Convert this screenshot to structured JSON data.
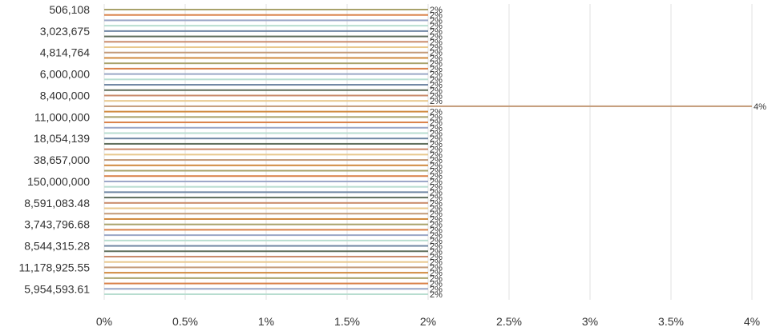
{
  "chart_data": {
    "type": "bar",
    "orientation": "horizontal",
    "title": "",
    "xlabel": "",
    "ylabel": "",
    "xlim": [
      0,
      4
    ],
    "x_ticks": [
      "0%",
      "0.5%",
      "1%",
      "1.5%",
      "2%",
      "2.5%",
      "3%",
      "3.5%",
      "4%"
    ],
    "x_tick_values": [
      0,
      0.5,
      1,
      1.5,
      2,
      2.5,
      3,
      3.5,
      4
    ],
    "grid": "vertical",
    "legend": "none",
    "category_tick_labels": [
      "506,108",
      "3,023,675",
      "4,814,764",
      "6,000,000",
      "8,400,000",
      "11,000,000",
      "18,054,139",
      "38,657,000",
      "150,000,000",
      "8,591,083.48",
      "3,743,796.68",
      "8,544,315.28",
      "11,178,925.55",
      "5,954,593.61"
    ],
    "bar_count": 54,
    "values": [
      2,
      2,
      2,
      2,
      2,
      2,
      2,
      2,
      2,
      2,
      2,
      2,
      2,
      2,
      2,
      2,
      2,
      2,
      4,
      2,
      2,
      2,
      2,
      2,
      2,
      2,
      2,
      2,
      2,
      2,
      2,
      2,
      2,
      2,
      2,
      2,
      2,
      2,
      2,
      2,
      2,
      2,
      2,
      2,
      2,
      2,
      2,
      2,
      2,
      2,
      2,
      2,
      2,
      2
    ],
    "labels": [
      "2%",
      "2%",
      "2%",
      "2%",
      "2%",
      "2%",
      "2%",
      "2%",
      "2%",
      "2%",
      "2%",
      "2%",
      "2%",
      "2%",
      "2%",
      "2%",
      "2%",
      "2%",
      "4%",
      "2%",
      "2%",
      "2%",
      "2%",
      "2%",
      "2%",
      "2%",
      "2%",
      "2%",
      "2%",
      "2%",
      "2%",
      "2%",
      "2%",
      "2%",
      "2%",
      "2%",
      "2%",
      "2%",
      "2%",
      "2%",
      "2%",
      "2%",
      "2%",
      "2%",
      "2%",
      "2%",
      "2%",
      "2%",
      "2%",
      "2%",
      "2%",
      "2%",
      "2%",
      "2%"
    ],
    "colors": [
      "#a8a26b",
      "#d9824a",
      "#9aa6c6",
      "#b8ddd0",
      "#6f86a3",
      "#5f6e5c",
      "#c98a6a",
      "#e8c88d",
      "#c29a78",
      "#d08a3f"
    ]
  }
}
